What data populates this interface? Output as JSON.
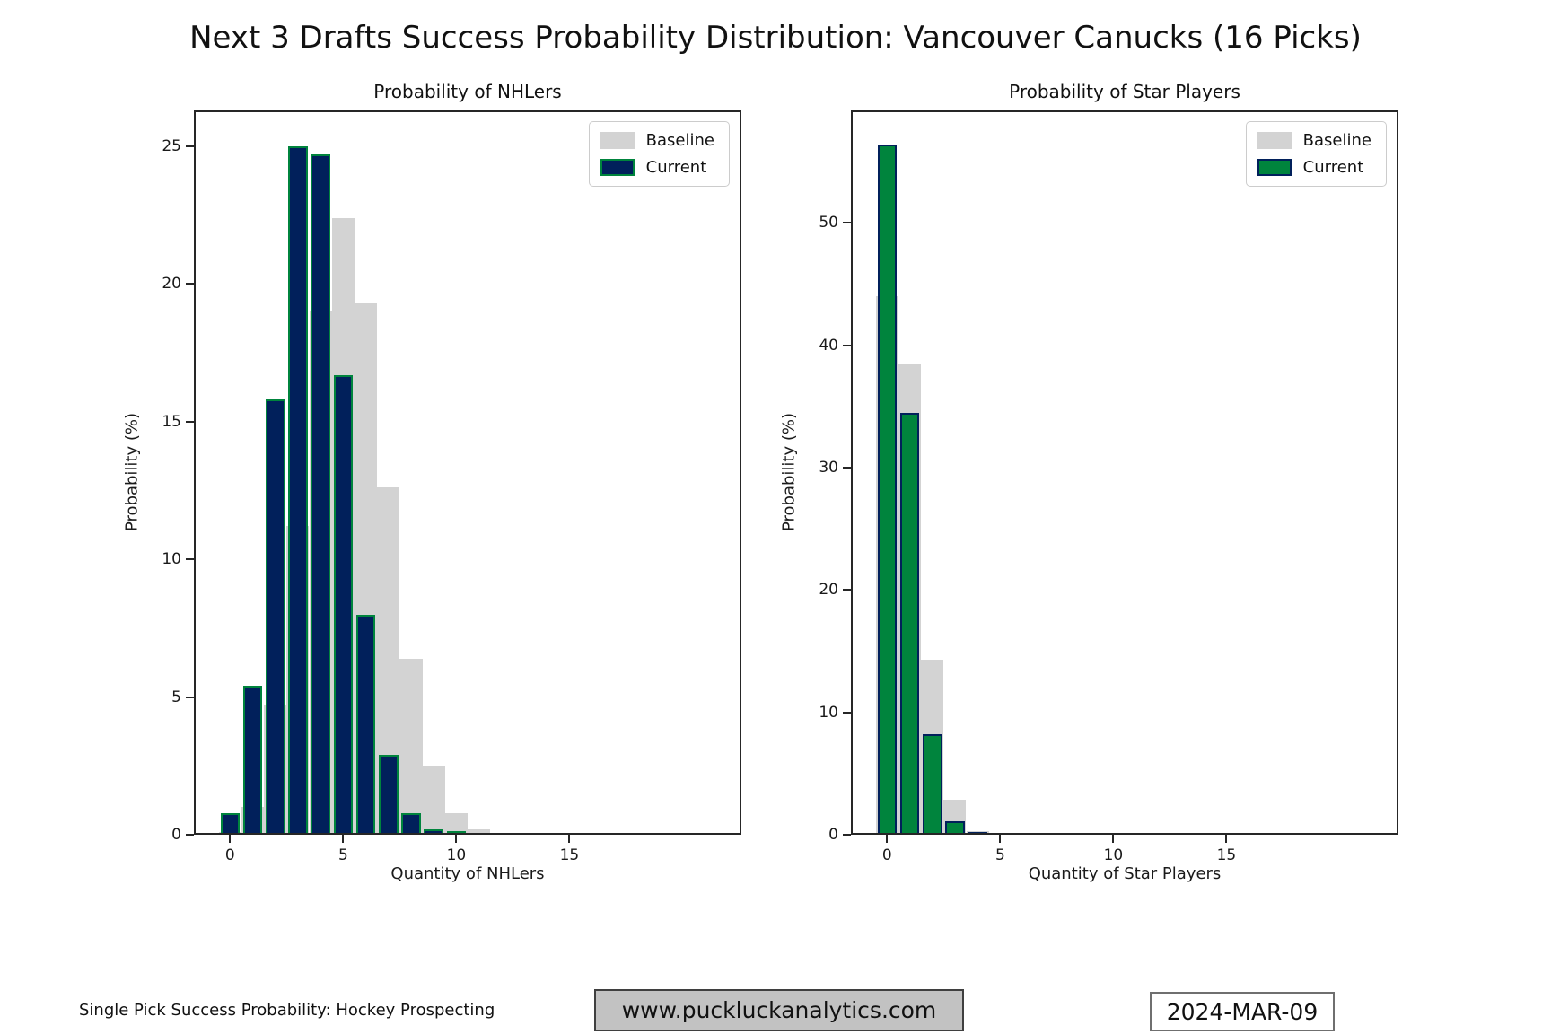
{
  "title": "Next 3 Drafts Success Probability Distribution: Vancouver Canucks (16 Picks)",
  "colors": {
    "navy": "#01205B",
    "green": "#00843D",
    "baseline_gray": "#D3D3D3",
    "spine": "#262626",
    "website_box_bg": "#C2C2C2",
    "website_box_border": "#3F3F3F",
    "date_box_border": "#6F6F6F"
  },
  "chart_data": [
    {
      "type": "bar",
      "title": "Probability of NHLers",
      "xlabel": "Quantity of NHLers",
      "ylabel": "Probability (%)",
      "legend": [
        "Baseline",
        "Current"
      ],
      "legend_position": "upper right",
      "grid": false,
      "xlim": [
        -1.6,
        22.6
      ],
      "ylim": [
        0,
        26.3
      ],
      "x_ticks": [
        0,
        5,
        10,
        15
      ],
      "y_ticks": [
        0,
        5,
        10,
        15,
        20,
        25
      ],
      "series": [
        {
          "name": "Baseline",
          "fill": "#D3D3D3",
          "edge": null,
          "bar_width": 1.0,
          "x": [
            0,
            1,
            2,
            3,
            4,
            5,
            6,
            7,
            8,
            9,
            10,
            11
          ],
          "values": [
            0.1,
            1.0,
            4.7,
            11.2,
            19.0,
            22.4,
            19.3,
            12.6,
            6.4,
            2.5,
            0.8,
            0.2
          ]
        },
        {
          "name": "Current",
          "fill": "#01205B",
          "edge": "#00843D",
          "bar_width": 0.86,
          "x": [
            0,
            1,
            2,
            3,
            4,
            5,
            6,
            7,
            8,
            9,
            10,
            11,
            12,
            13,
            14,
            15,
            16
          ],
          "values": [
            0.8,
            5.4,
            15.8,
            25.0,
            24.7,
            16.7,
            8.0,
            2.9,
            0.8,
            0.2,
            0.1,
            0,
            0,
            0,
            0,
            0,
            0
          ]
        }
      ]
    },
    {
      "type": "bar",
      "title": "Probability of Star Players",
      "xlabel": "Quantity of Star Players",
      "ylabel": "Probability (%)",
      "legend": [
        "Baseline",
        "Current"
      ],
      "legend_position": "upper right",
      "grid": false,
      "xlim": [
        -1.6,
        22.6
      ],
      "ylim": [
        0,
        59.2
      ],
      "x_ticks": [
        0,
        5,
        10,
        15
      ],
      "y_ticks": [
        0,
        10,
        20,
        30,
        40,
        50
      ],
      "series": [
        {
          "name": "Baseline",
          "fill": "#D3D3D3",
          "edge": null,
          "bar_width": 1.0,
          "x": [
            0,
            1,
            2,
            3,
            4
          ],
          "values": [
            44.0,
            38.5,
            14.3,
            2.9,
            0.3
          ]
        },
        {
          "name": "Current",
          "fill": "#00843D",
          "edge": "#01205B",
          "bar_width": 0.86,
          "x": [
            0,
            1,
            2,
            3,
            4,
            5,
            6,
            7,
            8,
            9,
            10,
            11,
            12,
            13,
            14,
            15,
            16
          ],
          "values": [
            56.4,
            34.5,
            8.2,
            1.1,
            0.2,
            0,
            0,
            0,
            0,
            0,
            0,
            0,
            0,
            0,
            0,
            0,
            0
          ]
        }
      ]
    }
  ],
  "footer": {
    "left_note": "Single Pick Success Probability: Hockey Prospecting",
    "website": "www.puckluckanalytics.com",
    "date": "2024-MAR-09"
  }
}
